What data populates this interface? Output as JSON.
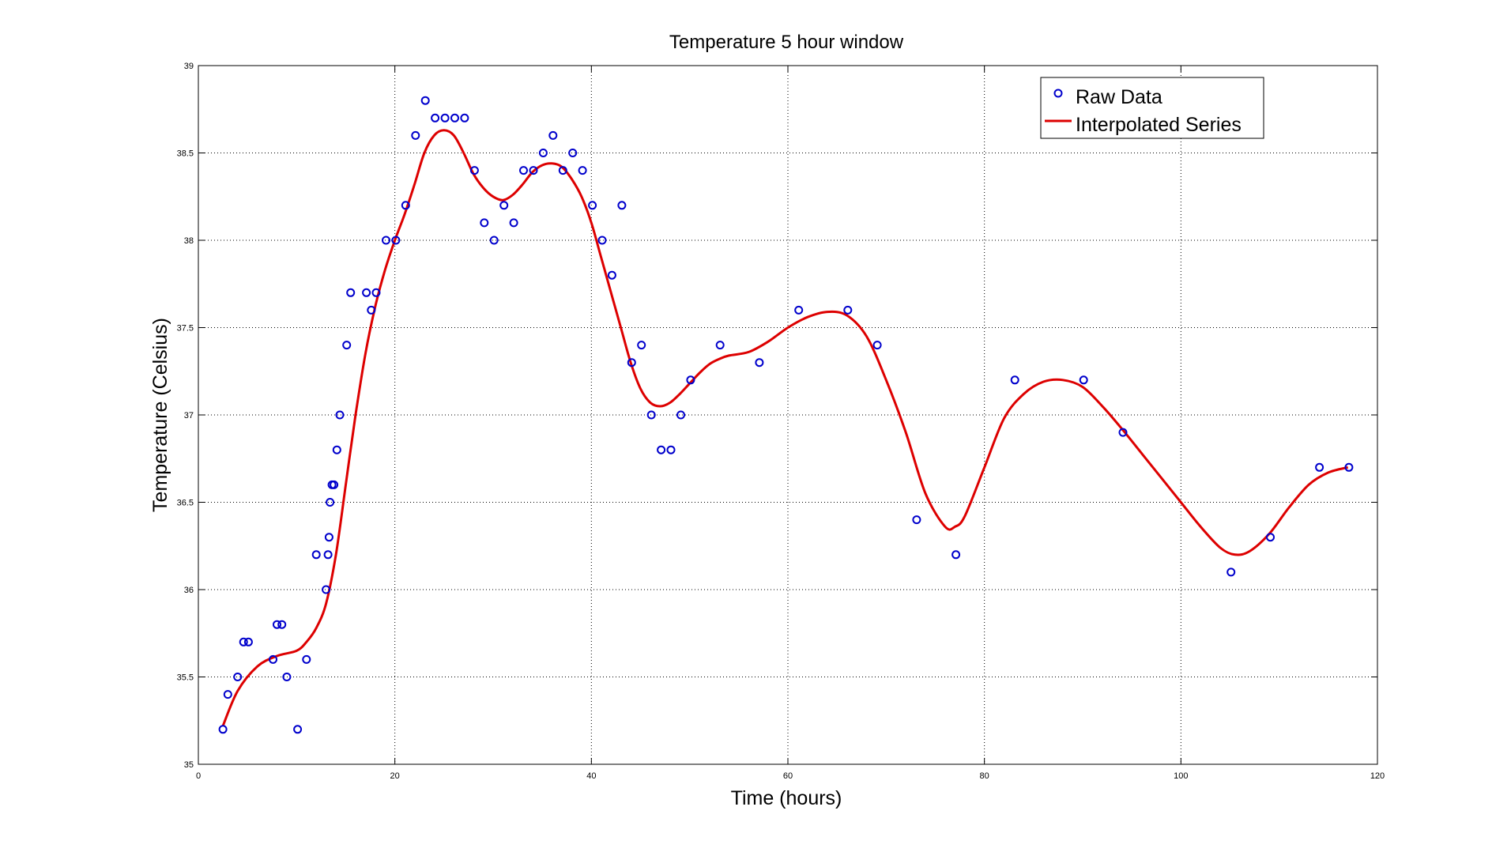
{
  "chart_data": {
    "type": "scatter",
    "title": "Temperature 5 hour window",
    "xlabel": "Time (hours)",
    "ylabel": "Temperature (Celsius)",
    "xlim": [
      0,
      120
    ],
    "ylim": [
      35,
      39
    ],
    "xticks": [
      0,
      20,
      40,
      60,
      80,
      100,
      120
    ],
    "xtick_labels": [
      "0",
      "20",
      "40",
      "60",
      "80",
      "100",
      "120"
    ],
    "yticks": [
      35,
      35.5,
      36,
      36.5,
      37,
      37.5,
      38,
      38.5,
      39
    ],
    "ytick_labels": [
      "35",
      "35.5",
      "36",
      "36.5",
      "37",
      "37.5",
      "38",
      "38.5",
      "39"
    ],
    "grid": true,
    "legend_position": "top-right",
    "series": [
      {
        "name": "Raw Data",
        "kind": "markers",
        "marker": "circle",
        "color": "#0000cc",
        "x": [
          2.5,
          3,
          4,
          4.6,
          5.1,
          7.6,
          8,
          8.5,
          9,
          10.1,
          11,
          12,
          13,
          13.2,
          13.3,
          13.4,
          13.6,
          13.8,
          14.1,
          14.4,
          15.1,
          15.5,
          17.1,
          17.6,
          18.1,
          19.1,
          20.1,
          21.1,
          22.1,
          23.1,
          24.1,
          25.1,
          26.1,
          27.1,
          28.1,
          29.1,
          30.1,
          31.1,
          32.1,
          33.1,
          34.1,
          35.1,
          36.1,
          37.1,
          38.1,
          39.1,
          40.1,
          41.1,
          42.1,
          43.1,
          44.1,
          45.1,
          46.1,
          47.1,
          48.1,
          49.1,
          50.1,
          53.1,
          57.1,
          61.1,
          66.1,
          69.1,
          73.1,
          77.1,
          83.1,
          90.1,
          94.1,
          105.1,
          109.1,
          114.1,
          117.1
        ],
        "y": [
          35.2,
          35.4,
          35.5,
          35.7,
          35.7,
          35.6,
          35.8,
          35.8,
          35.5,
          35.2,
          35.6,
          36.2,
          36.0,
          36.2,
          36.3,
          36.5,
          36.6,
          36.6,
          36.8,
          37.0,
          37.4,
          37.7,
          37.7,
          37.6,
          37.7,
          38.0,
          38.0,
          38.2,
          38.6,
          38.8,
          38.7,
          38.7,
          38.7,
          38.7,
          38.4,
          38.1,
          38.0,
          38.2,
          38.1,
          38.4,
          38.4,
          38.5,
          38.6,
          38.4,
          38.5,
          38.4,
          38.2,
          38.0,
          37.8,
          38.2,
          37.3,
          37.4,
          37.0,
          36.8,
          36.8,
          37.0,
          37.2,
          37.4,
          37.3,
          37.6,
          37.6,
          37.4,
          36.4,
          36.2,
          37.2,
          37.2,
          36.9,
          36.1,
          36.3,
          36.7,
          36.7
        ]
      },
      {
        "name": "Interpolated Series",
        "kind": "line",
        "color": "#dd0000",
        "x": [
          2.5,
          4,
          6,
          8,
          10,
          11,
          12,
          13,
          14,
          15,
          16,
          17,
          18,
          19,
          20,
          21,
          22,
          23,
          24,
          25,
          26,
          27,
          28,
          29,
          30,
          31,
          32,
          33,
          34,
          35,
          36,
          37,
          38,
          39,
          40,
          41,
          42,
          43,
          44,
          45,
          46,
          47,
          48,
          49,
          50,
          51,
          52,
          53,
          54,
          56,
          58,
          60,
          62,
          64,
          66,
          68,
          70,
          72,
          74,
          76,
          77,
          78,
          80,
          82,
          84,
          86,
          88,
          90,
          92,
          94,
          96,
          98,
          100,
          102,
          104,
          105.5,
          107,
          109,
          111,
          113,
          115,
          117
        ],
        "y": [
          35.22,
          35.42,
          35.56,
          35.62,
          35.65,
          35.7,
          35.78,
          35.92,
          36.2,
          36.6,
          37.0,
          37.35,
          37.62,
          37.83,
          38.0,
          38.15,
          38.32,
          38.5,
          38.6,
          38.63,
          38.6,
          38.5,
          38.38,
          38.3,
          38.25,
          38.23,
          38.26,
          38.32,
          38.39,
          38.43,
          38.44,
          38.42,
          38.35,
          38.25,
          38.1,
          37.9,
          37.7,
          37.5,
          37.3,
          37.15,
          37.07,
          37.05,
          37.07,
          37.12,
          37.18,
          37.24,
          37.29,
          37.32,
          37.34,
          37.36,
          37.42,
          37.5,
          37.56,
          37.59,
          37.57,
          37.45,
          37.2,
          36.9,
          36.55,
          36.36,
          36.36,
          36.42,
          36.7,
          36.98,
          37.12,
          37.19,
          37.2,
          37.16,
          37.05,
          36.92,
          36.78,
          36.64,
          36.5,
          36.36,
          36.24,
          36.2,
          36.22,
          36.32,
          36.47,
          36.6,
          36.67,
          36.7
        ]
      }
    ],
    "legend": [
      {
        "label": "Raw Data",
        "symbol": "circle",
        "color": "#0000cc"
      },
      {
        "label": "Interpolated Series",
        "symbol": "line",
        "color": "#dd0000"
      }
    ]
  }
}
